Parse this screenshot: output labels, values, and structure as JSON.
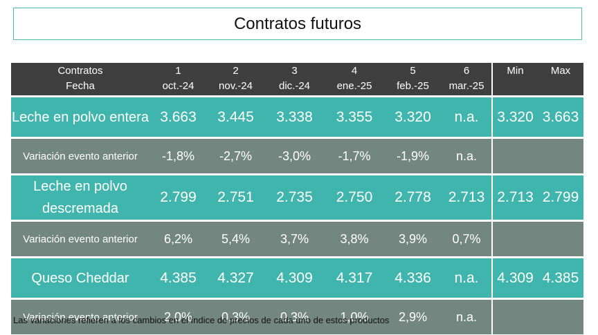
{
  "title": "Contratos futuros",
  "chart_data": {
    "type": "table",
    "header": {
      "row_label_top": "Contratos",
      "row_label_bottom": "Fecha",
      "contracts": [
        {
          "number": "1",
          "date": "oct.-24"
        },
        {
          "number": "2",
          "date": "nov.-24"
        },
        {
          "number": "3",
          "date": "dic.-24"
        },
        {
          "number": "4",
          "date": "ene.-25"
        },
        {
          "number": "5",
          "date": "feb.-25"
        },
        {
          "number": "6",
          "date": "mar.-25"
        }
      ],
      "min_label": "Min",
      "max_label": "Max"
    },
    "products": [
      {
        "name": "Leche en polvo entera",
        "prices": [
          "3.663",
          "3.445",
          "3.338",
          "3.355",
          "3.320",
          "n.a."
        ],
        "min": "3.320",
        "max": "3.663",
        "variation_label": "Variación evento anterior",
        "variations": [
          "-1,8%",
          "-2,7%",
          "-3,0%",
          "-1,7%",
          "-1,9%",
          "n.a."
        ]
      },
      {
        "name": "Leche en polvo descremada",
        "prices": [
          "2.799",
          "2.751",
          "2.735",
          "2.750",
          "2.778",
          "2.713"
        ],
        "min": "2.713",
        "max": "2.799",
        "variation_label": "Variación evento anterior",
        "variations": [
          "6,2%",
          "5,4%",
          "3,7%",
          "3,8%",
          "3,9%",
          "0,7%"
        ]
      },
      {
        "name": "Queso Cheddar",
        "prices": [
          "4.385",
          "4.327",
          "4.309",
          "4.317",
          "4.336",
          "n.a."
        ],
        "min": "4.309",
        "max": "4.385",
        "variation_label": "Variación evento anterior",
        "variations": [
          "2,0%",
          "0,3%",
          "0,3%",
          "1,0%",
          "2,9%",
          "n.a."
        ]
      }
    ]
  },
  "footnote": "Las variaciones refieren a los cambios en el índice de precios de cada uno de estos productos",
  "colors": {
    "header_bg": "#3f3f3f",
    "product_row_bg": "#3fb5ad",
    "variation_row_bg": "#738780",
    "title_border": "#4fb8b0"
  }
}
